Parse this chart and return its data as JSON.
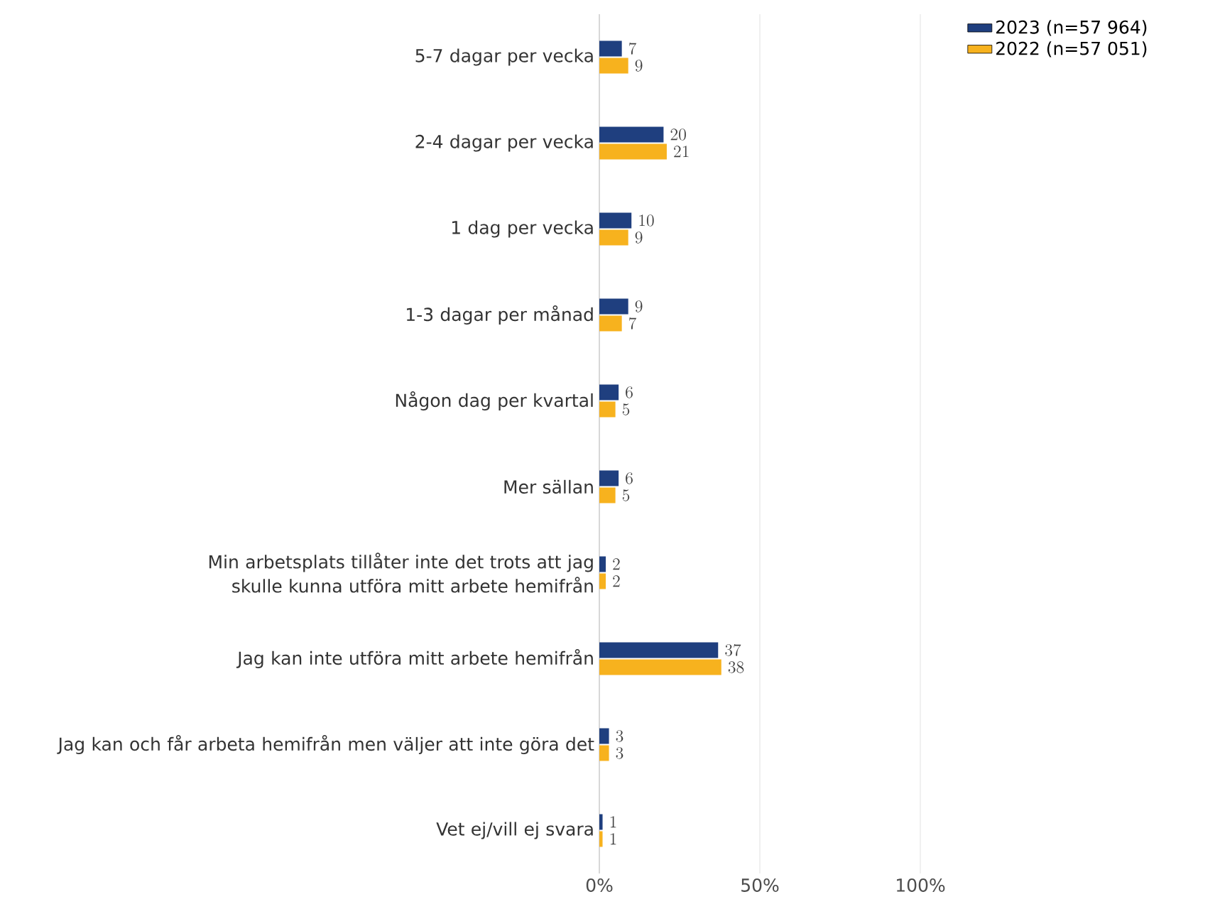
{
  "chart_data": {
    "type": "bar",
    "orientation": "horizontal",
    "categories": [
      "5-7 dagar per vecka",
      "2-4 dagar per vecka",
      "1 dag per vecka",
      "1-3 dagar per månad",
      "Någon dag per kvartal",
      "Mer sällan",
      "Min arbetsplats tillåter inte det trots att jag skulle kunna utföra mitt arbete hemifrån",
      "Jag kan inte utföra mitt arbete hemifrån",
      "Jag kan och får arbeta hemifrån men väljer att inte göra det",
      "Vet ej/vill ej svara"
    ],
    "series": [
      {
        "name": "2023 (n=57 964)",
        "color": "#1f3f7f",
        "values": [
          7,
          20,
          10,
          9,
          6,
          6,
          2,
          37,
          3,
          1
        ]
      },
      {
        "name": "2022 (n=57 051)",
        "color": "#f7b21e",
        "values": [
          9,
          21,
          9,
          7,
          5,
          5,
          2,
          38,
          3,
          1
        ]
      }
    ],
    "xlim": [
      0,
      100
    ],
    "xticks": [
      {
        "value": 0,
        "label": "0%"
      },
      {
        "value": 50,
        "label": "50%"
      },
      {
        "value": 100,
        "label": "100%"
      }
    ],
    "grid": "x",
    "legend": "top right",
    "data_labels": true
  }
}
